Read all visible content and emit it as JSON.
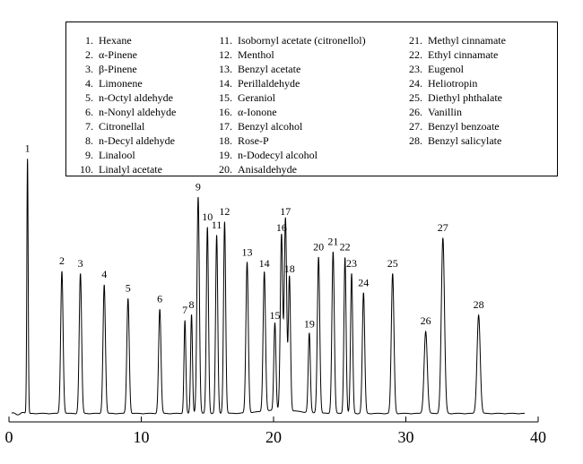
{
  "chart_data": {
    "type": "line",
    "title": "",
    "xlabel": "",
    "ylabel": "",
    "xlim": [
      0,
      40
    ],
    "ylim": [
      0,
      100
    ],
    "x_ticks": [
      0,
      10,
      20,
      30,
      40
    ],
    "x_tick_labels": [
      "0",
      "10",
      "20",
      "30",
      "40"
    ],
    "baseline_end": 39,
    "peaks": [
      {
        "label": "1",
        "rt": 1.4,
        "height": 93.0,
        "width": 0.05
      },
      {
        "label": "2",
        "rt": 4.0,
        "height": 52.0,
        "width": 0.09
      },
      {
        "label": "3",
        "rt": 5.4,
        "height": 51.0,
        "width": 0.09
      },
      {
        "label": "4",
        "rt": 7.2,
        "height": 47.0,
        "width": 0.09
      },
      {
        "label": "5",
        "rt": 9.0,
        "height": 42.0,
        "width": 0.09
      },
      {
        "label": "6",
        "rt": 11.4,
        "height": 38.0,
        "width": 0.09
      },
      {
        "label": "7",
        "rt": 13.3,
        "height": 34.0,
        "width": 0.07
      },
      {
        "label": "8",
        "rt": 13.8,
        "height": 36.0,
        "width": 0.07
      },
      {
        "label": "9",
        "rt": 14.3,
        "height": 79.0,
        "width": 0.09
      },
      {
        "label": "10",
        "rt": 15.0,
        "height": 68.0,
        "width": 0.08
      },
      {
        "label": "11",
        "rt": 15.7,
        "height": 65.0,
        "width": 0.08
      },
      {
        "label": "12",
        "rt": 16.3,
        "height": 70.0,
        "width": 0.08
      },
      {
        "label": "13",
        "rt": 18.0,
        "height": 55.0,
        "width": 0.09
      },
      {
        "label": "14",
        "rt": 19.3,
        "height": 51.0,
        "width": 0.09
      },
      {
        "label": "15",
        "rt": 20.1,
        "height": 32.0,
        "width": 0.08
      },
      {
        "label": "16",
        "rt": 20.6,
        "height": 64.0,
        "width": 0.09
      },
      {
        "label": "17",
        "rt": 20.9,
        "height": 70.0,
        "width": 0.09
      },
      {
        "label": "18",
        "rt": 21.2,
        "height": 49.0,
        "width": 0.08
      },
      {
        "label": "19",
        "rt": 22.7,
        "height": 29.0,
        "width": 0.08
      },
      {
        "label": "20",
        "rt": 23.4,
        "height": 57.0,
        "width": 0.09
      },
      {
        "label": "21",
        "rt": 24.5,
        "height": 59.0,
        "width": 0.09
      },
      {
        "label": "22",
        "rt": 25.4,
        "height": 57.0,
        "width": 0.08
      },
      {
        "label": "23",
        "rt": 25.9,
        "height": 51.0,
        "width": 0.08
      },
      {
        "label": "24",
        "rt": 26.8,
        "height": 44.0,
        "width": 0.09
      },
      {
        "label": "25",
        "rt": 29.0,
        "height": 51.0,
        "width": 0.1
      },
      {
        "label": "26",
        "rt": 31.5,
        "height": 30.0,
        "width": 0.12
      },
      {
        "label": "27",
        "rt": 32.8,
        "height": 64.0,
        "width": 0.12
      },
      {
        "label": "28",
        "rt": 35.5,
        "height": 36.0,
        "width": 0.12
      }
    ],
    "legend": [
      {
        "num": "1.",
        "name": "Hexane"
      },
      {
        "num": "2.",
        "name": "α-Pinene"
      },
      {
        "num": "3.",
        "name": "β-Pinene"
      },
      {
        "num": "4.",
        "name": "Limonene"
      },
      {
        "num": "5.",
        "name": "n-Octyl aldehyde"
      },
      {
        "num": "6.",
        "name": "n-Nonyl aldehyde"
      },
      {
        "num": "7.",
        "name": "Citronellal"
      },
      {
        "num": "8.",
        "name": "n-Decyl aldehyde"
      },
      {
        "num": "9.",
        "name": "Linalool"
      },
      {
        "num": "10.",
        "name": "Linalyl  acetate"
      },
      {
        "num": "11.",
        "name": "Isobornyl acetate (citronellol)"
      },
      {
        "num": "12.",
        "name": "Menthol"
      },
      {
        "num": "13.",
        "name": "Benzyl acetate"
      },
      {
        "num": "14.",
        "name": "Perillaldehyde"
      },
      {
        "num": "15.",
        "name": "Geraniol"
      },
      {
        "num": "16.",
        "name": "α-Ionone"
      },
      {
        "num": "17.",
        "name": "Benzyl alcohol"
      },
      {
        "num": "18.",
        "name": "Rose-P"
      },
      {
        "num": "19.",
        "name": "n-Dodecyl alcohol"
      },
      {
        "num": "20.",
        "name": "Anisaldehyde"
      },
      {
        "num": "21.",
        "name": "Methyl cinnamate"
      },
      {
        "num": "22.",
        "name": "Ethyl cinnamate"
      },
      {
        "num": "23.",
        "name": "Eugenol"
      },
      {
        "num": "24.",
        "name": "Heliotropin"
      },
      {
        "num": "25.",
        "name": "Diethyl phthalate"
      },
      {
        "num": "26.",
        "name": "Vanillin"
      },
      {
        "num": "27.",
        "name": "Benzyl benzoate"
      },
      {
        "num": "28.",
        "name": "Benzyl salicylate"
      }
    ]
  }
}
